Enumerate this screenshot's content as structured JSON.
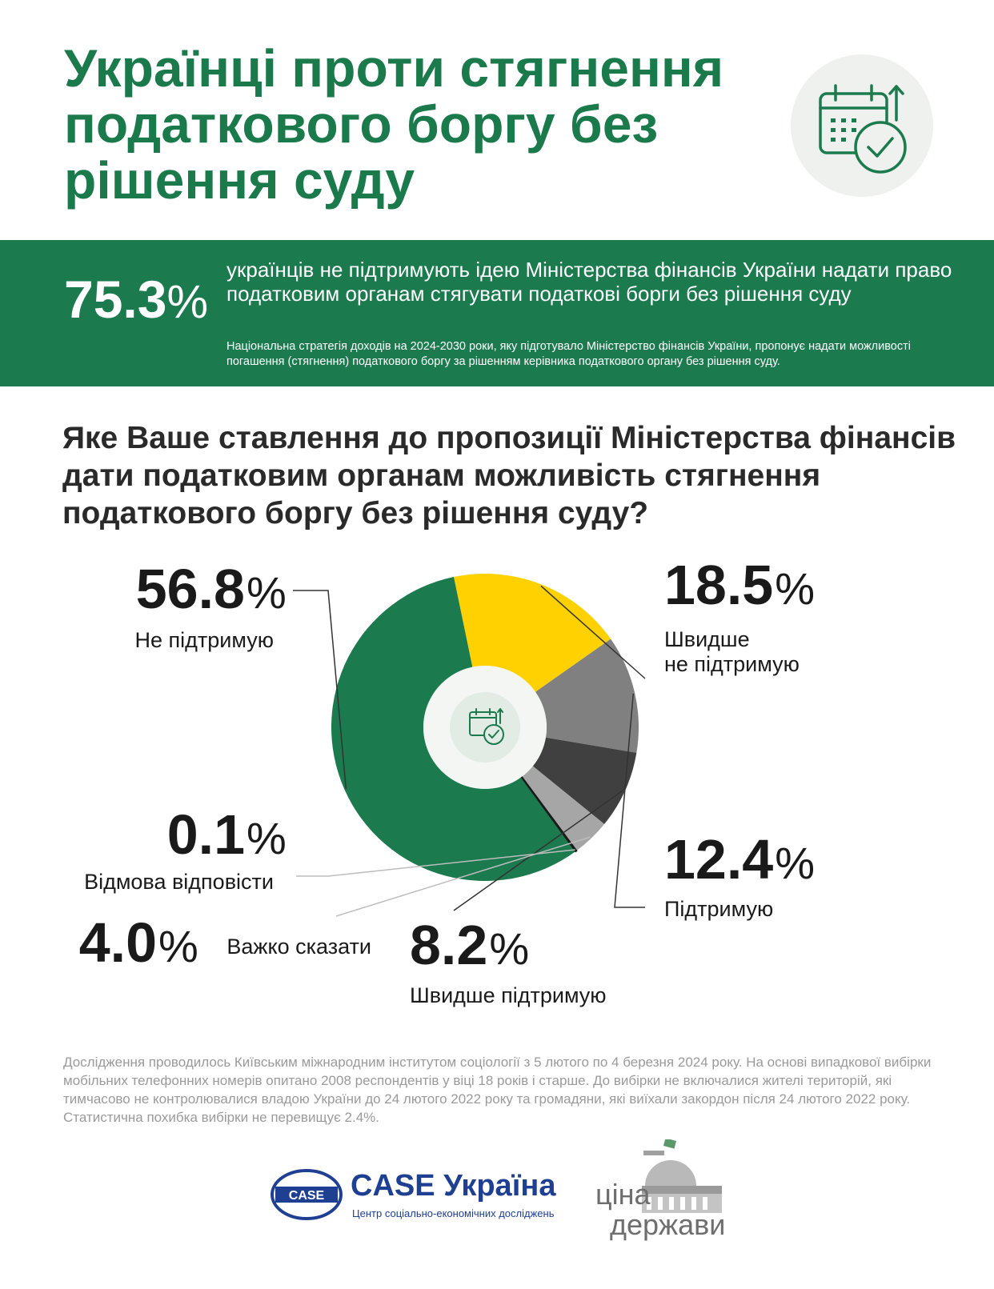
{
  "header": {
    "title": "Українці проти стягнення податкового боргу без рішення суду",
    "icon": "calendar-check-icon"
  },
  "banner": {
    "stat_value": "75.3",
    "stat_unit": "%",
    "text": "українців не підтримують ідею Міністерства фінансів України надати право податковим органам стягувати податкові борги без рішення суду",
    "note": "Національна стратегія доходів на 2024-2030 роки, яку підготувало Міністерство фінансів України, пропонує надати можливості погашення (стягнення) податкового боргу за рішенням керівника податкового органу без рішення суду."
  },
  "question": "Яке Ваше ставлення до пропозиції Міністерства фінансів дати податковим органам можливість стягнення податкового боргу без рішення суду?",
  "colors": {
    "brand_green": "#1b7a4e",
    "title_green": "#1a7a4c",
    "yellow": "#ffd100",
    "gray": "#808080",
    "dark_gray": "#404040",
    "light_gray": "#a6a6a6",
    "black": "#1a1a1a"
  },
  "chart_data": {
    "type": "pie",
    "variant": "donut",
    "unit": "%",
    "series": [
      {
        "name": "Не підтримую",
        "value": 56.8,
        "label": "56.8",
        "color": "#1b7a4e"
      },
      {
        "name": "Швидше не підтримую",
        "value": 18.5,
        "label": "18.5",
        "color": "#ffd100"
      },
      {
        "name": "Підтримую",
        "value": 12.4,
        "label": "12.4",
        "color": "#808080"
      },
      {
        "name": "Швидше підтримую",
        "value": 8.2,
        "label": "8.2",
        "color": "#404040"
      },
      {
        "name": "Важко сказати",
        "value": 4.0,
        "label": "4.0",
        "color": "#a6a6a6"
      },
      {
        "name": "Відмова відповісти",
        "value": 0.1,
        "label": "0.1",
        "color": "#1a1a1a"
      }
    ],
    "center_icon": "calendar-check-icon"
  },
  "footnote": "Дослідження проводилось Київським міжнародним інститутом соціології з 5 лютого по 4 березня 2024 року.  На основі випадкової вибірки мобільних телефонних номерів опитано 2008 респондентів у віці 18 років і старше.  До вибірки не включалися жителі територій, які тимчасово не контролювалися владою України до 24 лютого 2022 року та громадяни, які виїхали закордон після 24 лютого 2022 року.  Статистична похибка вибірки не перевищує 2.4%.",
  "logos": {
    "case_badge": "CASE",
    "case_name": "CASE Україна",
    "case_subtitle": "Центр соціально-економічних досліджень",
    "cina_line1": "ціна",
    "cina_line2": "держави"
  }
}
